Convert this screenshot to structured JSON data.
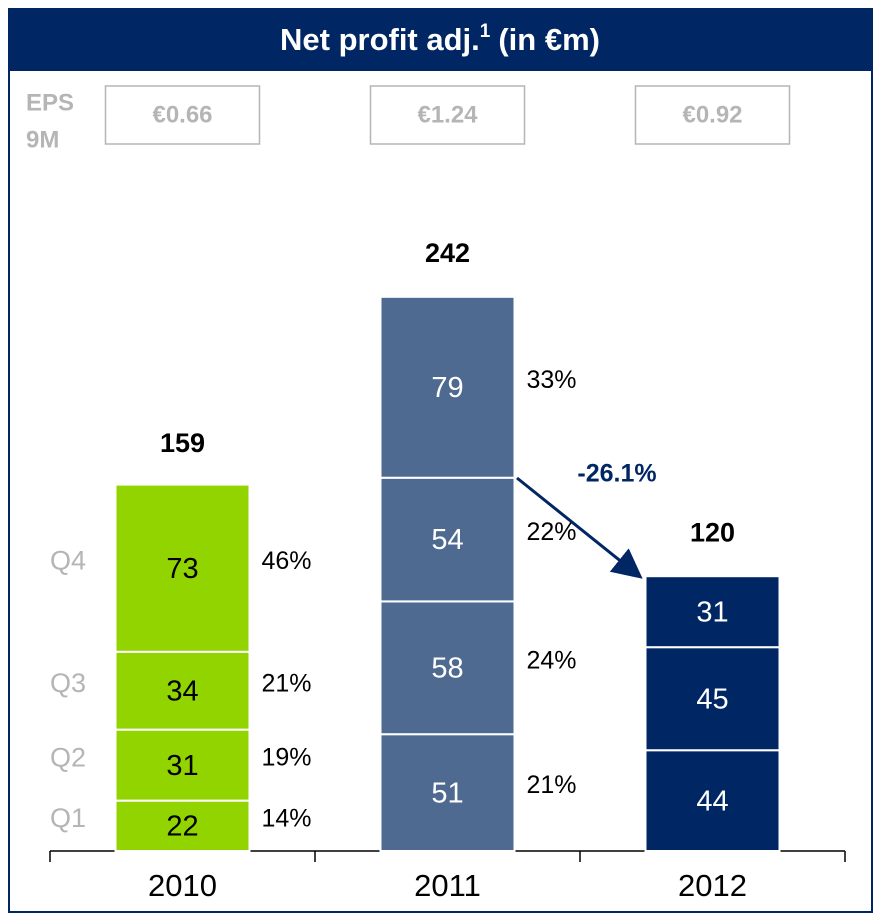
{
  "chart_data": {
    "type": "stacked_bar",
    "title": "Net profit adj.",
    "title_superscript": "1",
    "title_suffix": "(in €m)",
    "eps_label": [
      "EPS",
      "9M"
    ],
    "eps": [
      "€0.66",
      "€1.24",
      "€0.92"
    ],
    "categories": [
      "2010",
      "2011",
      "2012"
    ],
    "colors": [
      "#92d400",
      "#4f6a91",
      "#002664"
    ],
    "series": [
      {
        "name": "Q1",
        "values": [
          22,
          51,
          44
        ],
        "share_labels": [
          "14%",
          "21%",
          null
        ]
      },
      {
        "name": "Q2",
        "values": [
          31,
          58,
          45
        ],
        "share_labels": [
          "19%",
          "24%",
          null
        ]
      },
      {
        "name": "Q3",
        "values": [
          34,
          54,
          31
        ],
        "share_labels": [
          "21%",
          "22%",
          null
        ]
      },
      {
        "name": "Q4",
        "values": [
          73,
          79,
          null
        ],
        "share_labels": [
          "46%",
          "33%",
          null
        ]
      }
    ],
    "totals": [
      159,
      242,
      120
    ],
    "annotation": "-26.1%",
    "ylim": [
      0,
      260
    ]
  }
}
